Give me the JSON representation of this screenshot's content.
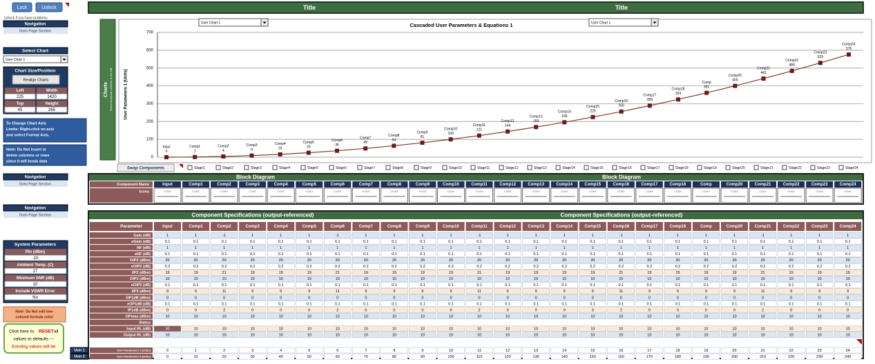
{
  "toolbar": {
    "lock": "Lock",
    "unlock": "Unlock",
    "hint": "Unlock if you have problems"
  },
  "navigation": [
    {
      "title": "Navigation",
      "link": "Goto Page Section"
    },
    {
      "title": "Navigation",
      "link": "Goto Page Section"
    },
    {
      "title": "Navigation",
      "link": "Goto Page Section"
    }
  ],
  "select_chart": {
    "title": "Select Chart",
    "value": "User Chart 1"
  },
  "chart_size": {
    "title": "Chart Size/Position",
    "button": "Realign Charts",
    "fields": [
      {
        "label": "Left",
        "value": 225
      },
      {
        "label": "Width",
        "value": 1420
      },
      {
        "label": "Top",
        "value": 45
      },
      {
        "label": "Height",
        "value": 265
      }
    ]
  },
  "notes": [
    [
      "To Change Chart Axis",
      "Limits: Right-click on axis",
      "and select Format Axis."
    ],
    [
      "Note: Do Not insert or",
      "delete columns or rows",
      "since it will break data"
    ]
  ],
  "system_parameters": {
    "title": "System Parameters",
    "fields": [
      {
        "label": "Pin (dBm)",
        "value": -10
      },
      {
        "label": "Ambient Temp. (C)",
        "value": 17
      },
      {
        "label": "Minimum SNR (dB)",
        "value": 10
      },
      {
        "label": "Include VSWR Error",
        "value": "No"
      }
    ]
  },
  "edit_note": [
    "Note: Do Not edit line-",
    "colored formula cells!"
  ],
  "reset": {
    "line1": [
      "Click here to",
      "RESET",
      "all"
    ],
    "line2": "values to defaults ---",
    "line3": "Existing values will be"
  },
  "title_bar": [
    "Title",
    "Title"
  ],
  "charts_tab": {
    "title": "Charts",
    "subtitle": "Select dropdown selector to the left"
  },
  "chart": {
    "type": "line",
    "title": "Cascaded User Parameters  & Equations  1",
    "selectors": [
      "User Chart 1",
      "User Chart 1"
    ],
    "y_label": "User Parameters 1 (Units)",
    "categories": [
      "Input",
      "Comp1",
      "Comp2",
      "Comp3",
      "Comp4",
      "Comp5",
      "Comp6",
      "Comp7",
      "Comp8",
      "Comp9",
      "Comp10",
      "Comp11",
      "Comp12",
      "Comp13",
      "Comp14",
      "Comp15",
      "Comp16",
      "Comp17",
      "Comp18",
      "Comp",
      "Comp20",
      "Comp21",
      "Comp22",
      "Comp23",
      "Comp24"
    ],
    "values": [
      0,
      1,
      4,
      9,
      16,
      25,
      36,
      49,
      64,
      81,
      100,
      121,
      144,
      169,
      196,
      225,
      256,
      289,
      324,
      361,
      400,
      441,
      484,
      529,
      576
    ],
    "ylim": [
      0,
      700
    ],
    "yticks": [
      0,
      100,
      200,
      300,
      400,
      500,
      600,
      700
    ],
    "line_color": "#7a3a2e",
    "marker_color": "#6e1a1a",
    "grid": true
  },
  "swap": {
    "label": "Swap Components",
    "stages": [
      "Stage1",
      "Stage2",
      "Stage3",
      "Stage4",
      "Stage5",
      "Stage6",
      "Stage7",
      "Stage8",
      "Stage9",
      "Stage10",
      "Stage11",
      "Stage12",
      "Stage13",
      "Stage14",
      "Stage15",
      "Stage16",
      "Stage17",
      "Stage18",
      "Stage19",
      "Stage20",
      "Stage21",
      "Stage22",
      "Stage23",
      "Stage24"
    ]
  },
  "block_diagram": {
    "titles": [
      "Block Diagram",
      "Block Diagram"
    ],
    "row_labels": [
      "Component Name",
      "Icons"
    ],
    "names": [
      "Input",
      "Comp1",
      "Comp2",
      "Comp3",
      "Comp4",
      "Comp5",
      "Comp6",
      "Comp7",
      "Comp8",
      "Comp9",
      "Comp10",
      "Comp11",
      "Comp12",
      "Comp13",
      "Comp14",
      "Comp15",
      "Comp16",
      "Comp17",
      "Comp18",
      "Comp",
      "Comp20",
      "Comp21",
      "Comp22",
      "Comp23",
      "Comp24"
    ],
    "icons": [
      "COAX",
      "COAX",
      "COAX",
      "COAX",
      "COAX",
      "COAX",
      "COAX",
      "COAX",
      "COAX",
      "COAX",
      "COAX",
      "COAX",
      "COAX",
      "COAX",
      "COAX",
      "COAX",
      "COAX",
      "COAX",
      "COAX",
      "COAX",
      "COAX",
      "COAX",
      "COAX",
      "COAX",
      "COAX"
    ]
  },
  "specs": {
    "titles": [
      "Component Specifications (output-referenced)",
      "Component Specifications (output-referenced)"
    ],
    "header": "Parameter",
    "columns": [
      "Input",
      "Comp1",
      "Comp2",
      "Comp3",
      "Comp4",
      "Comp5",
      "Comp6",
      "Comp7",
      "Comp8",
      "Comp9",
      "Comp10",
      "Comp11",
      "Comp12",
      "Comp13",
      "Comp14",
      "Comp15",
      "Comp16",
      "Comp17",
      "Comp18",
      "Comp",
      "Comp20",
      "Comp21",
      "Comp22",
      "Comp23",
      "Comp24"
    ],
    "rows": [
      {
        "label": "Gain (dB)",
        "values": [
          1,
          1,
          -1,
          1,
          1,
          1,
          -1,
          1,
          1,
          1,
          1,
          -1,
          1,
          1,
          1,
          1,
          -1,
          1,
          1,
          1,
          1,
          -1,
          1,
          1,
          1
        ]
      },
      {
        "label": "eGain (dB)",
        "values": [
          0.1,
          0.1,
          0.1,
          0.1,
          0.1,
          0.1,
          0.1,
          0.1,
          0.1,
          0.1,
          0.1,
          0.1,
          0.1,
          0.1,
          0.1,
          0.1,
          0.1,
          0.1,
          0.1,
          0.1,
          0.1,
          0.1,
          0.1,
          0.1,
          0.1
        ]
      },
      {
        "label": "NF (dB)",
        "values": [
          1,
          1,
          1,
          1,
          1,
          1,
          1,
          1,
          1,
          1,
          1,
          1,
          1,
          1,
          1,
          1,
          1,
          1,
          1,
          1,
          1,
          1,
          1,
          1,
          1
        ]
      },
      {
        "label": "eNF (dB)",
        "values": [
          0.1,
          0.1,
          0.1,
          0.1,
          0.1,
          0.1,
          0.1,
          0.1,
          0.1,
          0.1,
          0.1,
          0.1,
          0.1,
          0.1,
          0.1,
          0.1,
          0.1,
          0.1,
          0.1,
          0.1,
          0.1,
          0.1,
          0.1,
          0.1,
          0.1
        ]
      },
      {
        "label": "OIP2 (dBm)",
        "values": [
          20,
          20,
          20,
          20,
          20,
          20,
          20,
          20,
          20,
          20,
          20,
          20,
          20,
          20,
          20,
          20,
          20,
          20,
          20,
          20,
          20,
          20,
          20,
          20,
          20
        ]
      },
      {
        "label": "eOIP2 (dB)",
        "values": [
          0.2,
          0.2,
          0.2,
          0.2,
          0.2,
          0.2,
          0.2,
          0.2,
          0.2,
          0.2,
          0.2,
          0.2,
          0.2,
          0.2,
          0.2,
          0.2,
          0.2,
          0.2,
          0.2,
          0.2,
          0.2,
          0.2,
          0.2,
          0.2,
          0.2
        ]
      },
      {
        "label": "IIP2 (dBm)",
        "values": [
          19,
          19,
          21,
          19,
          19,
          19,
          21,
          19,
          19,
          19,
          19,
          21,
          19,
          19,
          19,
          19,
          21,
          19,
          19,
          19,
          19,
          21,
          19,
          19,
          19
        ]
      },
      {
        "label": "OIP3 (dBm)",
        "values": [
          10,
          10,
          10,
          10,
          10,
          10,
          10,
          10,
          10,
          10,
          10,
          10,
          10,
          10,
          10,
          10,
          10,
          10,
          10,
          10,
          10,
          10,
          10,
          10,
          10
        ]
      },
      {
        "label": "eOIP3 (dB)",
        "values": [
          0.1,
          0.1,
          0.1,
          0.1,
          0.1,
          0.1,
          0.1,
          0.1,
          0.1,
          0.1,
          0.1,
          0.1,
          0.1,
          0.1,
          0.1,
          0.1,
          0.1,
          0.1,
          0.1,
          0.1,
          0.1,
          0.1,
          0.1,
          0.1,
          0.1
        ]
      },
      {
        "label": "IIP3 (dBm)",
        "values": [
          9,
          9,
          11,
          9,
          9,
          9,
          11,
          9,
          9,
          9,
          9,
          11,
          9,
          9,
          9,
          9,
          11,
          9,
          9,
          9,
          9,
          11,
          9,
          9,
          9
        ]
      },
      {
        "label": "OP1dB (dBm)",
        "values": [
          0,
          0,
          0,
          0,
          0,
          0,
          0,
          0,
          0,
          0,
          0,
          0,
          0,
          0,
          0,
          0,
          0,
          0,
          0,
          0,
          0,
          0,
          0,
          0,
          0
        ]
      },
      {
        "label": "eOP1dB (dB)",
        "values": [
          0.1,
          0.1,
          0.1,
          0.1,
          0.1,
          0.1,
          0.1,
          0.1,
          0.1,
          0.1,
          0.1,
          0.1,
          0.1,
          0.1,
          0.1,
          0.1,
          0.1,
          0.1,
          0.1,
          0.1,
          0.1,
          0.1,
          0.1,
          0.1,
          0.1
        ]
      },
      {
        "label": "IP1dB (dBm)",
        "values": [
          0,
          0,
          2,
          0,
          0,
          0,
          2,
          0,
          0,
          0,
          0,
          2,
          0,
          0,
          0,
          0,
          2,
          0,
          0,
          0,
          0,
          2,
          0,
          0,
          0
        ]
      },
      {
        "label": "OPmax (dBm)",
        "values": [
          10,
          10,
          10,
          10,
          10,
          10,
          10,
          10,
          10,
          10,
          10,
          10,
          10,
          10,
          10,
          10,
          10,
          10,
          10,
          10,
          10,
          10,
          10,
          10,
          10
        ]
      },
      {
        "label": "Status"
      },
      {
        "label": "Input RL (dB)",
        "values": [
          30,
          10,
          10,
          10,
          10,
          10,
          10,
          10,
          10,
          10,
          10,
          10,
          10,
          10,
          10,
          10,
          10,
          10,
          10,
          10,
          10,
          10,
          10,
          10,
          10
        ]
      },
      {
        "label": "Output RL (dB)",
        "values": [
          10,
          10,
          10,
          10,
          10,
          10,
          10,
          10,
          10,
          10,
          10,
          10,
          10,
          10,
          10,
          10,
          10,
          10,
          10,
          10,
          10,
          10,
          10,
          10,
          10
        ]
      }
    ],
    "user_rows": [
      {
        "tab": "User 1",
        "label": "User Parameters 1 (Units)",
        "values": [
          0,
          1,
          2,
          3,
          4,
          5,
          6,
          7,
          8,
          9,
          10,
          11,
          12,
          13,
          14,
          15,
          16,
          17,
          18,
          19,
          20,
          21,
          22,
          23,
          24
        ]
      },
      {
        "tab": "User 2",
        "label": "User Parameters 2 (Units)",
        "values": [
          0,
          10,
          20,
          30,
          40,
          50,
          60,
          70,
          80,
          90,
          100,
          110,
          120,
          130,
          140,
          150,
          160,
          170,
          180,
          190,
          200,
          210,
          220,
          230,
          240
        ]
      }
    ]
  }
}
